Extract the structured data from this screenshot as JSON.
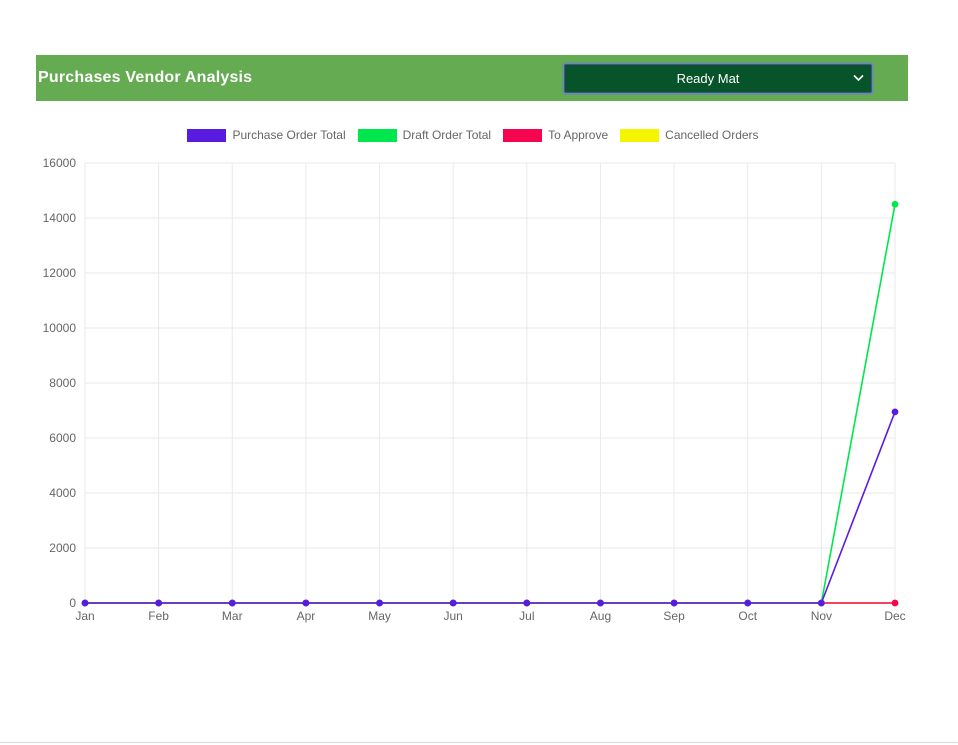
{
  "header": {
    "title": "Purchases Vendor Analysis",
    "bg_color": "#65ab51",
    "vendor_selector": {
      "selected": "Ready Mat",
      "bg_color": "#07542a",
      "text_color": "#ffffff"
    }
  },
  "chart_data": {
    "type": "line",
    "categories": [
      "Jan",
      "Feb",
      "Mar",
      "Apr",
      "May",
      "Jun",
      "Jul",
      "Aug",
      "Sep",
      "Oct",
      "Nov",
      "Dec"
    ],
    "series": [
      {
        "name": "Purchase Order Total",
        "color": "#5a1be0",
        "values": [
          0,
          0,
          0,
          0,
          0,
          0,
          0,
          0,
          0,
          0,
          0,
          6950
        ]
      },
      {
        "name": "Draft Order Total",
        "color": "#00e64d",
        "values": [
          0,
          0,
          0,
          0,
          0,
          0,
          0,
          0,
          0,
          0,
          0,
          14500
        ]
      },
      {
        "name": "To Approve",
        "color": "#f5054f",
        "values": [
          0,
          0,
          0,
          0,
          0,
          0,
          0,
          0,
          0,
          0,
          0,
          0
        ]
      },
      {
        "name": "Cancelled Orders",
        "color": "#f5f500",
        "values": [
          0,
          0,
          0,
          0,
          0,
          0,
          0,
          0,
          0,
          0,
          0,
          0
        ]
      }
    ],
    "title": "",
    "xlabel": "",
    "ylabel": "",
    "ylim": [
      0,
      16000
    ],
    "ytick_step": 2000,
    "grid": true,
    "legend_position": "top",
    "grid_color": "#e9e9e9",
    "tick_color": "#666666"
  }
}
